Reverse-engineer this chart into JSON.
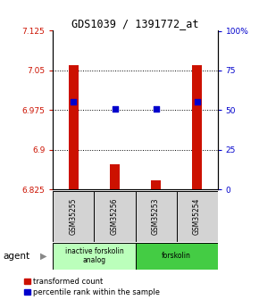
{
  "title": "GDS1039 / 1391772_at",
  "samples": [
    "GSM35255",
    "GSM35256",
    "GSM35253",
    "GSM35254"
  ],
  "red_values": [
    7.06,
    6.872,
    6.843,
    7.06
  ],
  "blue_values": [
    6.99,
    6.977,
    6.977,
    6.99
  ],
  "ylim_left": [
    6.825,
    7.125
  ],
  "ylim_right": [
    0,
    100
  ],
  "yticks_left": [
    6.825,
    6.9,
    6.975,
    7.05,
    7.125
  ],
  "yticks_right": [
    0,
    25,
    50,
    75,
    100
  ],
  "ytick_labels_left": [
    "6.825",
    "6.9",
    "6.975",
    "7.05",
    "7.125"
  ],
  "ytick_labels_right": [
    "0",
    "25",
    "50",
    "75",
    "100%"
  ],
  "hlines": [
    6.9,
    6.975,
    7.05
  ],
  "groups": [
    {
      "label": "inactive forskolin\nanalog",
      "color": "#bbffbb",
      "cols": [
        0,
        1
      ]
    },
    {
      "label": "forskolin",
      "color": "#44cc44",
      "cols": [
        2,
        3
      ]
    }
  ],
  "agent_label": "agent",
  "arrow": "▶",
  "legend_red": "transformed count",
  "legend_blue": "percentile rank within the sample",
  "bar_color": "#cc1100",
  "dot_color": "#0000cc",
  "bar_width": 0.25,
  "dot_size": 25,
  "background_color": "#ffffff",
  "plot_bg": "#ffffff",
  "left_tick_color": "#cc1100",
  "right_tick_color": "#0000cc",
  "title_fontsize": 8.5,
  "tick_fontsize": 6.5,
  "label_fontsize": 5.5,
  "legend_fontsize": 6,
  "group_fontsize": 5.5
}
